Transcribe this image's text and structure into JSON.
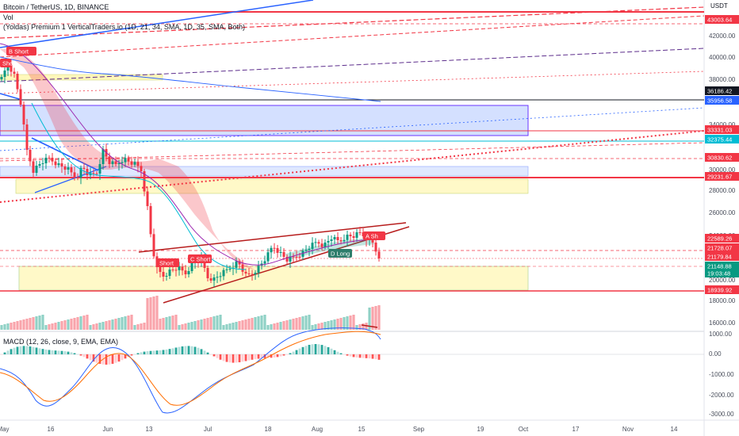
{
  "chart": {
    "title": "Bitcoin / TetherUS, 1D, BINANCE",
    "vol_label": "Vol",
    "indicator_label": "(Yoldas) Premium 1 VerticalTraders.io (1D, 21, 34, SMA, 1D, 35, SMA, Both)",
    "macd_label": "MACD (12, 26, close, 9, EMA, EMA)",
    "currency": "USDT",
    "price_ticks": [
      "42000.00",
      "40000.00",
      "38000.00",
      "34000.00",
      "30000.00",
      "28000.00",
      "26000.00",
      "24000.00",
      "20000.00",
      "18000.00",
      "16000.00"
    ],
    "macd_ticks": [
      "1000.00",
      "0.00",
      "-1000.00",
      "-2000.00",
      "-3000.00"
    ],
    "x_ticks": [
      "May",
      "16",
      "Jun",
      "13",
      "Jul",
      "18",
      "Aug",
      "15",
      "Sep",
      "19",
      "Oct",
      "17",
      "Nov",
      "14"
    ],
    "price_badges": [
      {
        "text": "43003.64",
        "color": "#f23645"
      },
      {
        "text": "36186.42",
        "color": "#131722"
      },
      {
        "text": "35956.58",
        "color": "#2962ff"
      },
      {
        "text": "33331.03",
        "color": "#f23645"
      },
      {
        "text": "32375.44",
        "color": "#00bcd4"
      },
      {
        "text": "30830.62",
        "color": "#f23645"
      },
      {
        "text": "29231.67",
        "color": "#f23645"
      },
      {
        "text": "22589.26",
        "color": "#f23645"
      },
      {
        "text": "21728.07",
        "color": "#f23645"
      },
      {
        "text": "21179.84",
        "color": "#f23645"
      },
      {
        "text": "21148.88",
        "color": "#089981"
      },
      {
        "text": "19:03:48",
        "color": "#089981"
      },
      {
        "text": "18939.92",
        "color": "#f23645"
      }
    ],
    "signals": [
      {
        "text": "B Short",
        "color": "#f23645"
      },
      {
        "text": "Short",
        "color": "#f23645"
      },
      {
        "text": "C Short",
        "color": "#f23645"
      },
      {
        "text": "Short",
        "color": "#f23645"
      },
      {
        "text": "D Long",
        "color": "#2e7d6b"
      },
      {
        "text": "A Sh",
        "color": "#f23645"
      }
    ],
    "colors": {
      "up": "#089981",
      "down": "#f23645",
      "macd": "#2962ff",
      "signal": "#ff6d00",
      "accent": "#2962ff"
    }
  }
}
